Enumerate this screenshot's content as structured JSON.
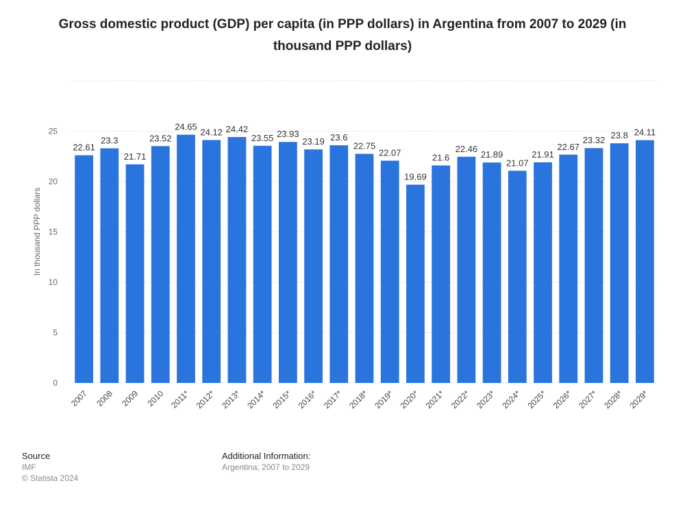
{
  "chart_data": {
    "type": "bar",
    "title": "Gross domestic product (GDP) per capita (in PPP dollars) in Argentina from 2007 to 2029 (in thousand PPP dollars)",
    "xlabel": "",
    "ylabel": "In thousand PPP dollars",
    "ylim": [
      0,
      30
    ],
    "yticks": [
      0,
      5,
      10,
      15,
      20,
      25
    ],
    "grid": true,
    "categories": [
      "2007",
      "2008",
      "2009",
      "2010",
      "2011*",
      "2012*",
      "2013*",
      "2014*",
      "2015*",
      "2016*",
      "2017*",
      "2018*",
      "2019*",
      "2020*",
      "2021*",
      "2022*",
      "2023*",
      "2024*",
      "2025*",
      "2026*",
      "2027*",
      "2028*",
      "2029*"
    ],
    "values": [
      22.61,
      23.3,
      21.71,
      23.52,
      24.65,
      24.12,
      24.42,
      23.55,
      23.93,
      23.19,
      23.6,
      22.75,
      22.07,
      19.69,
      21.6,
      22.46,
      21.89,
      21.07,
      21.91,
      22.67,
      23.32,
      23.8,
      24.11
    ],
    "value_labels": [
      "22.61",
      "23.3",
      "21.71",
      "23.52",
      "24.65",
      "24.12",
      "24.42",
      "23.55",
      "23.93",
      "23.19",
      "23.6",
      "22.75",
      "22.07",
      "19.69",
      "21.6",
      "22.46",
      "21.89",
      "21.07",
      "21.91",
      "22.67",
      "23.32",
      "23.8",
      "24.11"
    ],
    "bar_color": "#2a75dd"
  },
  "footer": {
    "source_heading": "Source",
    "source_lines": [
      "IMF",
      "© Statista 2024"
    ],
    "info_heading": "Additional Information:",
    "info_line": "Argentina; 2007 to 2029"
  }
}
